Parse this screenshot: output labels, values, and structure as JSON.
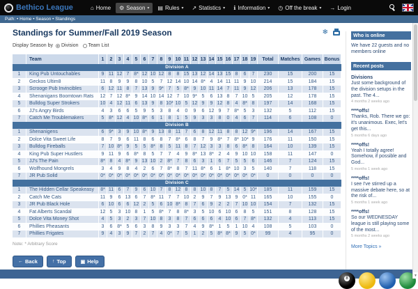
{
  "colors": {
    "accent": "#44719f",
    "nav_bg": "#0a0a0a",
    "brand_blue": "#3b77bc",
    "row_alt": "#dbe3ef",
    "footer": "#3d6493",
    "header_row": "#ccd9ea"
  },
  "nav": {
    "brand": "Bethico League",
    "items": [
      {
        "label": "Home",
        "icon": "home",
        "caret": false,
        "active": false
      },
      {
        "label": "Season",
        "icon": "gear",
        "caret": true,
        "active": true
      },
      {
        "label": "Rules",
        "icon": "document",
        "caret": true,
        "active": false
      },
      {
        "label": "Statistics",
        "icon": "chart",
        "caret": true,
        "active": false
      },
      {
        "label": "Information",
        "icon": "info",
        "caret": true,
        "active": false
      },
      {
        "label": "Off the break",
        "icon": "clock",
        "caret": true,
        "active": false
      },
      {
        "label": "Login",
        "icon": "login",
        "caret": false,
        "active": false
      }
    ]
  },
  "breadcrumb": "Path: • Home • Season • Standings",
  "page": {
    "title": "Standings for Summer/Fall 2019 Season",
    "display_by_label": "Display Season by",
    "options": [
      {
        "label": "Division",
        "selected": true
      },
      {
        "label": "Team List",
        "selected": false
      }
    ],
    "note": "Note: * Arbitrary Score",
    "buttons": [
      {
        "label": "Back",
        "icon": "back-arrow"
      },
      {
        "label": "Top",
        "icon": "up-arrow"
      },
      {
        "label": "Help",
        "icon": "help"
      }
    ]
  },
  "table": {
    "headers": {
      "rank": "",
      "team": "Team",
      "rounds": [
        "1",
        "2",
        "3",
        "4",
        "5",
        "6",
        "7",
        "8",
        "9",
        "10",
        "11",
        "12",
        "13",
        "14",
        "15",
        "16",
        "17",
        "18",
        "19"
      ],
      "total": "Total",
      "matches": "Matches",
      "games": "Games",
      "bonus": "Bonus"
    },
    "divisions": [
      {
        "name": "Division A",
        "rows": [
          {
            "rank": "1",
            "team": "King Pub Untouchables",
            "scores": [
              "9",
              "11",
              "12",
              "7",
              "8*",
              "12",
              "10",
              "12",
              "8",
              "8",
              "15",
              "13",
              "12",
              "14",
              "13",
              "15",
              "8",
              "6",
              "7"
            ],
            "total": "230",
            "matches": "15",
            "games": "200",
            "bonus": "15"
          },
          {
            "rank": "2",
            "team": "Geckos Ultim8",
            "scores": [
              "11",
              "8",
              "9",
              "9",
              "8",
              "10",
              "5",
              "7",
              "12",
              "14",
              "10",
              "14",
              "8*",
              "4",
              "14",
              "11",
              "11",
              "9",
              "10"
            ],
            "total": "214",
            "matches": "15",
            "games": "184",
            "bonus": "15"
          },
          {
            "rank": "3",
            "team": "Scrooge Pub Invincibles",
            "scores": [
              "6",
              "12",
              "11",
              "8",
              "7",
              "13",
              "9",
              "9*",
              "7",
              "5",
              "8*",
              "9",
              "10",
              "11",
              "14",
              "7",
              "11",
              "9",
              "12"
            ],
            "total": "206",
            "matches": "13",
            "games": "178",
            "bonus": "15"
          },
          {
            "rank": "4",
            "team": "Shenanigans Boomtown Rats",
            "scores": [
              "12",
              "7",
              "12",
              "8*",
              "9",
              "14",
              "10",
              "14",
              "12",
              "7",
              "10",
              "9*",
              "5",
              "6",
              "13",
              "8",
              "7",
              "10",
              "5"
            ],
            "total": "205",
            "matches": "12",
            "games": "178",
            "bonus": "15"
          },
          {
            "rank": "5",
            "team": "Bulldog Super Strokers",
            "scores": [
              "10",
              "4",
              "12",
              "11",
              "6",
              "13",
              "9",
              "8",
              "10*",
              "10",
              "5",
              "12",
              "9",
              "9",
              "12",
              "8",
              "4",
              "8*",
              "8"
            ],
            "total": "197",
            "matches": "14",
            "games": "168",
            "bonus": "15"
          },
          {
            "rank": "6",
            "team": "JJ's Angry Birds",
            "scores": [
              "4",
              "3",
              "6",
              "6",
              "5",
              "9",
              "5",
              "3",
              "8",
              "4",
              "0",
              "9",
              "6",
              "12",
              "9",
              "7",
              "8*",
              "5",
              "3"
            ],
            "total": "132",
            "matches": "5",
            "games": "112",
            "bonus": "15"
          },
          {
            "rank": "7",
            "team": "Catch Me Troublemakers",
            "scores": [
              "5",
              "8*",
              "12",
              "4",
              "10",
              "8*",
              "6",
              "1",
              "8",
              "1",
              "5",
              "9",
              "3",
              "3",
              "8",
              "0",
              "4",
              "6",
              "7"
            ],
            "total": "114",
            "matches": "6",
            "games": "108",
            "bonus": "0"
          }
        ]
      },
      {
        "name": "Division B",
        "rows": [
          {
            "rank": "1",
            "team": "Shenanigens",
            "scores": [
              "6",
              "9*",
              "3",
              "9",
              "10",
              "8*",
              "9",
              "13",
              "8",
              "11",
              "7",
              "6",
              "8",
              "12",
              "11",
              "8",
              "8",
              "12",
              "9*"
            ],
            "total": "196",
            "matches": "14",
            "games": "167",
            "bonus": "15"
          },
          {
            "rank": "2",
            "team": "Dolce Vita Sweet Life",
            "scores": [
              "8",
              "7",
              "9",
              "6",
              "11",
              "8",
              "6",
              "8",
              "7",
              "8*",
              "6",
              "8",
              "7",
              "9",
              "8*",
              "7",
              "8*",
              "10*",
              "9"
            ],
            "total": "176",
            "matches": "11",
            "games": "150",
            "bonus": "15"
          },
          {
            "rank": "3",
            "team": "Bulldog Fireballs",
            "scores": [
              "7",
              "10",
              "8*",
              "9",
              "5",
              "5",
              "8*",
              "8",
              "5",
              "11",
              "8",
              "7",
              "12",
              "3",
              "3",
              "8",
              "6",
              "8*",
              "8"
            ],
            "total": "164",
            "matches": "10",
            "games": "139",
            "bonus": "15"
          },
          {
            "rank": "4",
            "team": "King Pub Super Hustlers",
            "scores": [
              "9",
              "11",
              "9",
              "6",
              "8*",
              "8",
              "5",
              "7",
              "7",
              "4",
              "9",
              "8*",
              "13",
              "8*",
              "2",
              "4",
              "9",
              "10",
              "10"
            ],
            "total": "158",
            "matches": "11",
            "games": "147",
            "bonus": "0"
          },
          {
            "rank": "5",
            "team": "JJ's The Pain",
            "scores": [
              "8*",
              "8",
              "4",
              "8*",
              "9",
              "13",
              "10",
              "2",
              "8*",
              "7",
              "8",
              "6",
              "3",
              "1",
              "6",
              "7",
              "5",
              "5",
              "6"
            ],
            "total": "146",
            "matches": "7",
            "games": "124",
            "bonus": "15"
          },
          {
            "rank": "6",
            "team": "Wolfhound Mongrels",
            "scores": [
              "3",
              "4",
              "9",
              "8",
              "4",
              "2",
              "6",
              "7",
              "8*",
              "8",
              "7",
              "11",
              "8*",
              "6",
              "1",
              "8*",
              "10",
              "3",
              "5"
            ],
            "total": "140",
            "matches": "7",
            "games": "118",
            "bonus": "15"
          },
          {
            "rank": "7",
            "team": "JR Pub Solid",
            "scores": [
              "0*",
              "0*",
              "0*",
              "0*",
              "0*",
              "0*",
              "0*",
              "0*",
              "0*",
              "0*",
              "0*",
              "0*",
              "0*",
              "0*",
              "0*",
              "0*",
              "0*",
              "0*",
              "0*"
            ],
            "total": "0",
            "matches": "0",
            "games": "0",
            "bonus": "0"
          }
        ]
      },
      {
        "name": "Division C",
        "rows": [
          {
            "rank": "1",
            "team": "The Hidden Cellar Speakeasy",
            "scores": [
              "8*",
              "11",
              "6",
              "7",
              "9",
              "6",
              "10",
              "7",
              "8",
              "12",
              "8",
              "8",
              "10",
              "8",
              "7",
              "5",
              "14",
              "5",
              "10*"
            ],
            "total": "185",
            "matches": "11",
            "games": "159",
            "bonus": "15"
          },
          {
            "rank": "2",
            "team": "Catch Me Cats",
            "scores": [
              "11",
              "9",
              "6",
              "13",
              "6",
              "7",
              "8*",
              "11",
              "7",
              "7",
              "10",
              "2",
              "9",
              "7",
              "9",
              "13",
              "9",
              "0*",
              "11"
            ],
            "total": "165",
            "matches": "10",
            "games": "155",
            "bonus": "0"
          },
          {
            "rank": "3",
            "team": "JR Pub Black Hole",
            "scores": [
              "6",
              "10",
              "6",
              "6",
              "12",
              "2",
              "5",
              "6",
              "10",
              "8*",
              "8",
              "7",
              "6",
              "9",
              "2",
              "2",
              "7",
              "10",
              "10"
            ],
            "total": "154",
            "matches": "7",
            "games": "132",
            "bonus": "15"
          },
          {
            "rank": "4",
            "team": "Fat Alberts Scandal",
            "scores": [
              "12",
              "5",
              "3",
              "10",
              "8",
              "1",
              "5",
              "8*",
              "7",
              "8",
              "8*",
              "3",
              "5",
              "10",
              "6",
              "10",
              "6",
              "8",
              "5"
            ],
            "total": "151",
            "matches": "8",
            "games": "128",
            "bonus": "15"
          },
          {
            "rank": "5",
            "team": "Dolce Vita Money Shot",
            "scores": [
              "4",
              "5",
              "3",
              "2",
              "3",
              "7",
              "10",
              "8",
              "3",
              "8",
              "7",
              "6",
              "6",
              "6",
              "4",
              "10",
              "6",
              "7",
              "8*"
            ],
            "total": "132",
            "matches": "4",
            "games": "113",
            "bonus": "15"
          },
          {
            "rank": "6",
            "team": "Phillies Pheasants",
            "scores": [
              "3",
              "6",
              "8*",
              "5",
              "6",
              "3",
              "8",
              "9",
              "3",
              "3",
              "7",
              "4",
              "9",
              "8*",
              "1",
              "5",
              "1",
              "10",
              "4"
            ],
            "total": "108",
            "matches": "5",
            "games": "103",
            "bonus": "0"
          },
          {
            "rank": "7",
            "team": "Phillies Frigates",
            "scores": [
              "9",
              "4",
              "3",
              "9",
              "7",
              "2",
              "7",
              "4",
              "0*",
              "7",
              "5",
              "1",
              "2",
              "5",
              "8*",
              "8*",
              "9",
              "5",
              "0*"
            ],
            "total": "99",
            "matches": "4",
            "games": "95",
            "bonus": "0"
          }
        ]
      }
    ]
  },
  "sidebar": {
    "who_is_online_title": "Who is online",
    "who_is_online_text": "We have 22 guests and no members online",
    "recent_posts_title": "Recent posts",
    "posts": [
      {
        "title": "Divisions",
        "body": "Just some background of the division setups in the past. The 4...",
        "time": "4 months 2 weeks ago"
      },
      {
        "title": "****offs!",
        "body": "Thanks, Rob. There we go: it's unanimous. Exec, let's get this...",
        "time": "5 months 6 days ago"
      },
      {
        "title": "****offs!",
        "body": "Yeah I totally agree! Somehow, if possible and God...",
        "time": "5 months 1 week ago"
      },
      {
        "title": "****offs!",
        "body": "I see I've stirred up a massive debate here, so at the risk of...",
        "time": "5 months 1 week ago"
      },
      {
        "title": "****offs!",
        "body": "So our WEDNESDAY league is still playing some of the most...",
        "time": "5 months 2 weeks ago"
      }
    ],
    "more_link": "More Topics »"
  }
}
